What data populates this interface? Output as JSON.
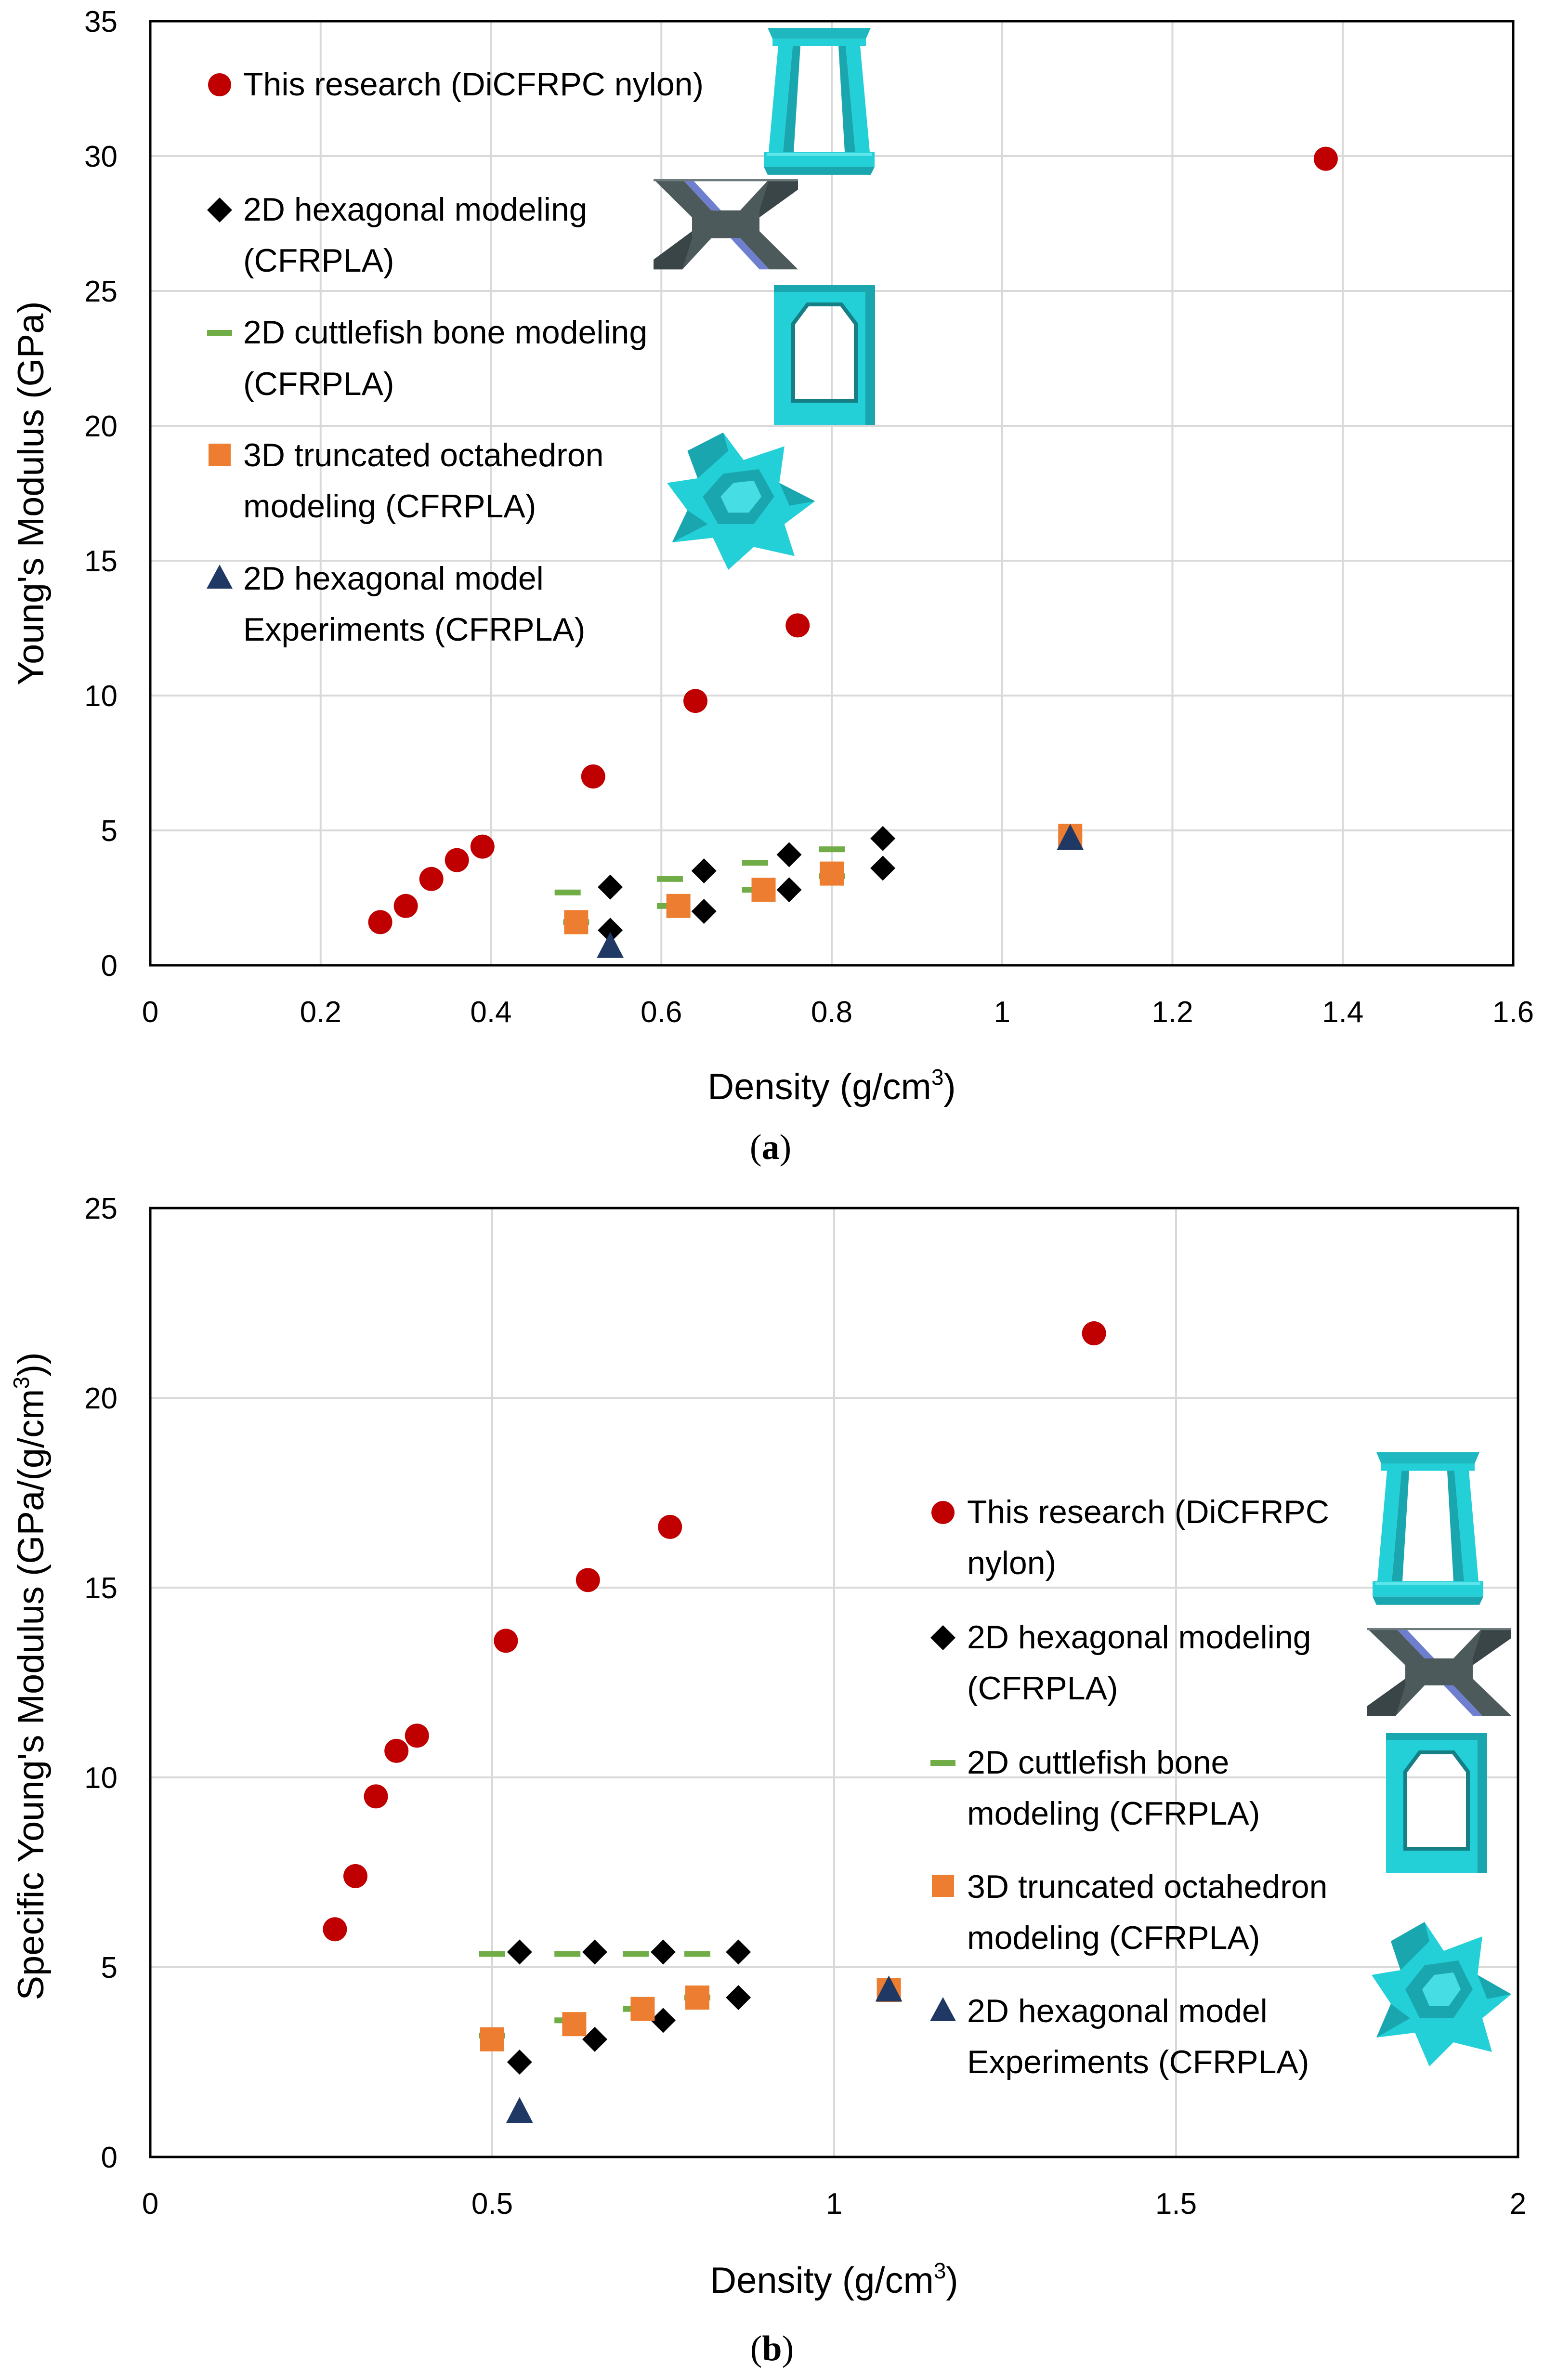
{
  "colors": {
    "this_research": "#C00000",
    "hex_model": "#000000",
    "cuttlefish": "#70AD47",
    "octahedron": "#ED7D31",
    "hex_experiment": "#1F3864",
    "icon_cyan": "#23D0D8",
    "icon_gray": "#4C5A5C",
    "icon_blue": "#6F7FCF"
  },
  "chart_data": [
    {
      "id": "a",
      "type": "scatter",
      "caption_label": "a",
      "xlabel": "Density (g/cm",
      "xlabel_sup": "3",
      "xlabel_end": ")",
      "ylabel": "Young's Modulus (GPa)",
      "xlim": [
        0,
        1.6
      ],
      "ylim": [
        0,
        35
      ],
      "xticks": [
        "0",
        "0.2",
        "0.4",
        "0.6",
        "0.8",
        "1",
        "1.2",
        "1.4",
        "1.6"
      ],
      "yticks": [
        "0",
        "5",
        "10",
        "15",
        "20",
        "25",
        "30",
        "35"
      ],
      "grid": true,
      "legend_position": "top-left",
      "series": [
        {
          "key": "this_research",
          "name_lines": [
            "This research (DiCFRPC nylon)"
          ],
          "marker": "circle",
          "points": [
            [
              0.27,
              1.6
            ],
            [
              0.3,
              2.2
            ],
            [
              0.33,
              3.2
            ],
            [
              0.36,
              3.9
            ],
            [
              0.39,
              4.4
            ],
            [
              0.52,
              7.0
            ],
            [
              0.64,
              9.8
            ],
            [
              0.76,
              12.6
            ],
            [
              1.38,
              29.9
            ]
          ]
        },
        {
          "key": "hex_model",
          "name_lines": [
            "2D hexagonal modeling",
            "(CFRPLA)"
          ],
          "marker": "diamond",
          "points": [
            [
              0.54,
              2.9
            ],
            [
              0.54,
              1.3
            ],
            [
              0.65,
              3.5
            ],
            [
              0.65,
              2.0
            ],
            [
              0.75,
              4.1
            ],
            [
              0.75,
              2.8
            ],
            [
              0.86,
              4.7
            ],
            [
              0.86,
              3.6
            ]
          ]
        },
        {
          "key": "cuttlefish",
          "name_lines": [
            "2D cuttlefish bone modeling",
            "(CFRPLA)"
          ],
          "marker": "dash",
          "points": [
            [
              0.49,
              2.7
            ],
            [
              0.5,
              1.6
            ],
            [
              0.61,
              3.2
            ],
            [
              0.61,
              2.2
            ],
            [
              0.71,
              3.8
            ],
            [
              0.71,
              2.8
            ],
            [
              0.8,
              4.3
            ],
            [
              0.8,
              3.3
            ]
          ]
        },
        {
          "key": "octahedron",
          "name_lines": [
            "3D truncated octahedron",
            "modeling (CFRPLA)"
          ],
          "marker": "square",
          "points": [
            [
              0.5,
              1.6
            ],
            [
              0.62,
              2.2
            ],
            [
              0.72,
              2.8
            ],
            [
              0.8,
              3.4
            ],
            [
              1.08,
              4.8
            ]
          ]
        },
        {
          "key": "hex_experiment",
          "name_lines": [
            "2D hexagonal model",
            "Experiments (CFRPLA)"
          ],
          "marker": "triangle",
          "points": [
            [
              0.54,
              0.7
            ],
            [
              1.08,
              4.7
            ]
          ]
        }
      ]
    },
    {
      "id": "b",
      "type": "scatter",
      "caption_label": "b",
      "xlabel": "Density (g/cm",
      "xlabel_sup": "3",
      "xlabel_end": ")",
      "ylabel": "Specific Young's Modulus (GPa/(g/cm",
      "ylabel_sup": "3",
      "ylabel_end": "))",
      "xlim": [
        0,
        2
      ],
      "ylim": [
        0,
        25
      ],
      "xticks": [
        "0",
        "0.5",
        "1",
        "1.5",
        "2"
      ],
      "yticks": [
        "0",
        "5",
        "10",
        "15",
        "20",
        "25"
      ],
      "grid": true,
      "legend_position": "right",
      "series": [
        {
          "key": "this_research",
          "name_lines": [
            "This research (DiCFRPC",
            "nylon)"
          ],
          "marker": "circle",
          "points": [
            [
              0.27,
              6.0
            ],
            [
              0.3,
              7.4
            ],
            [
              0.33,
              9.5
            ],
            [
              0.36,
              10.7
            ],
            [
              0.39,
              11.1
            ],
            [
              0.52,
              13.6
            ],
            [
              0.64,
              15.2
            ],
            [
              0.76,
              16.6
            ],
            [
              1.38,
              21.7
            ]
          ]
        },
        {
          "key": "hex_model",
          "name_lines": [
            "2D hexagonal modeling",
            "(CFRPLA)"
          ],
          "marker": "diamond",
          "points": [
            [
              0.54,
              5.4
            ],
            [
              0.54,
              2.5
            ],
            [
              0.65,
              5.4
            ],
            [
              0.65,
              3.1
            ],
            [
              0.75,
              5.4
            ],
            [
              0.75,
              3.6
            ],
            [
              0.86,
              5.4
            ],
            [
              0.86,
              4.2
            ]
          ]
        },
        {
          "key": "cuttlefish",
          "name_lines": [
            "2D cuttlefish bone",
            "modeling (CFRPLA)"
          ],
          "marker": "dash",
          "points": [
            [
              0.5,
              5.35
            ],
            [
              0.5,
              3.2
            ],
            [
              0.61,
              5.35
            ],
            [
              0.61,
              3.6
            ],
            [
              0.71,
              5.35
            ],
            [
              0.71,
              3.9
            ],
            [
              0.8,
              5.35
            ],
            [
              0.8,
              4.2
            ]
          ]
        },
        {
          "key": "octahedron",
          "name_lines": [
            "3D truncated octahedron",
            "modeling (CFRPLA)"
          ],
          "marker": "square",
          "points": [
            [
              0.5,
              3.1
            ],
            [
              0.62,
              3.5
            ],
            [
              0.72,
              3.9
            ],
            [
              0.8,
              4.2
            ],
            [
              1.08,
              4.4
            ]
          ]
        },
        {
          "key": "hex_experiment",
          "name_lines": [
            "2D hexagonal model",
            "Experiments (CFRPLA)"
          ],
          "marker": "triangle",
          "points": [
            [
              0.54,
              1.2
            ],
            [
              1.08,
              4.4
            ]
          ]
        }
      ]
    }
  ]
}
